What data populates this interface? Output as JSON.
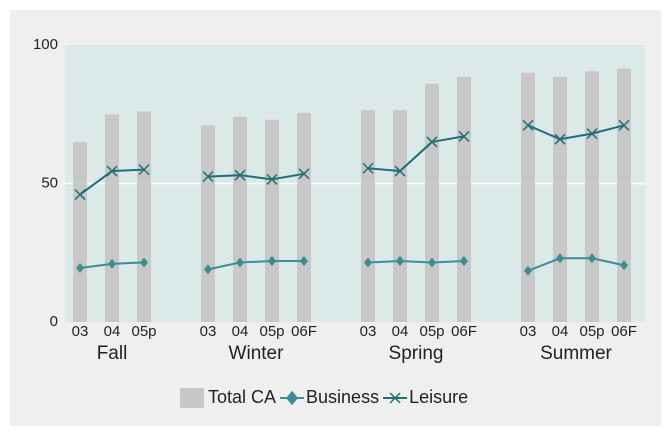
{
  "chart_data": {
    "type": "bar",
    "groups": [
      {
        "name": "Fall",
        "categories": [
          "03",
          "04",
          "05p"
        ]
      },
      {
        "name": "Winter",
        "categories": [
          "03",
          "04",
          "05p",
          "06F"
        ]
      },
      {
        "name": "Spring",
        "categories": [
          "03",
          "04",
          "05p",
          "06F"
        ]
      },
      {
        "name": "Summer",
        "categories": [
          "03",
          "04",
          "05p",
          "06F"
        ]
      }
    ],
    "series": [
      {
        "name": "Total CA",
        "type": "bar",
        "color": "#c8c8c8",
        "values": [
          65,
          75,
          76,
          71,
          74,
          73,
          75.5,
          76.5,
          76.5,
          86,
          88.5,
          90,
          88.5,
          90.5,
          91.5
        ]
      },
      {
        "name": "Business",
        "type": "line",
        "marker": "diamond",
        "color": "#3d8c93",
        "values": [
          19.5,
          21,
          21.5,
          19,
          21.5,
          22,
          22,
          21.5,
          22,
          21.5,
          22,
          18.5,
          23,
          23,
          20.5
        ]
      },
      {
        "name": "Leisure",
        "type": "line",
        "marker": "x",
        "color": "#1f6f76",
        "values": [
          46,
          54.5,
          55,
          52.5,
          53,
          51.5,
          53.5,
          55.5,
          54.5,
          65,
          67,
          71,
          66,
          68,
          71
        ]
      }
    ],
    "ylim": [
      0,
      100
    ],
    "yticks": [
      0,
      50,
      100
    ],
    "grid": true
  }
}
